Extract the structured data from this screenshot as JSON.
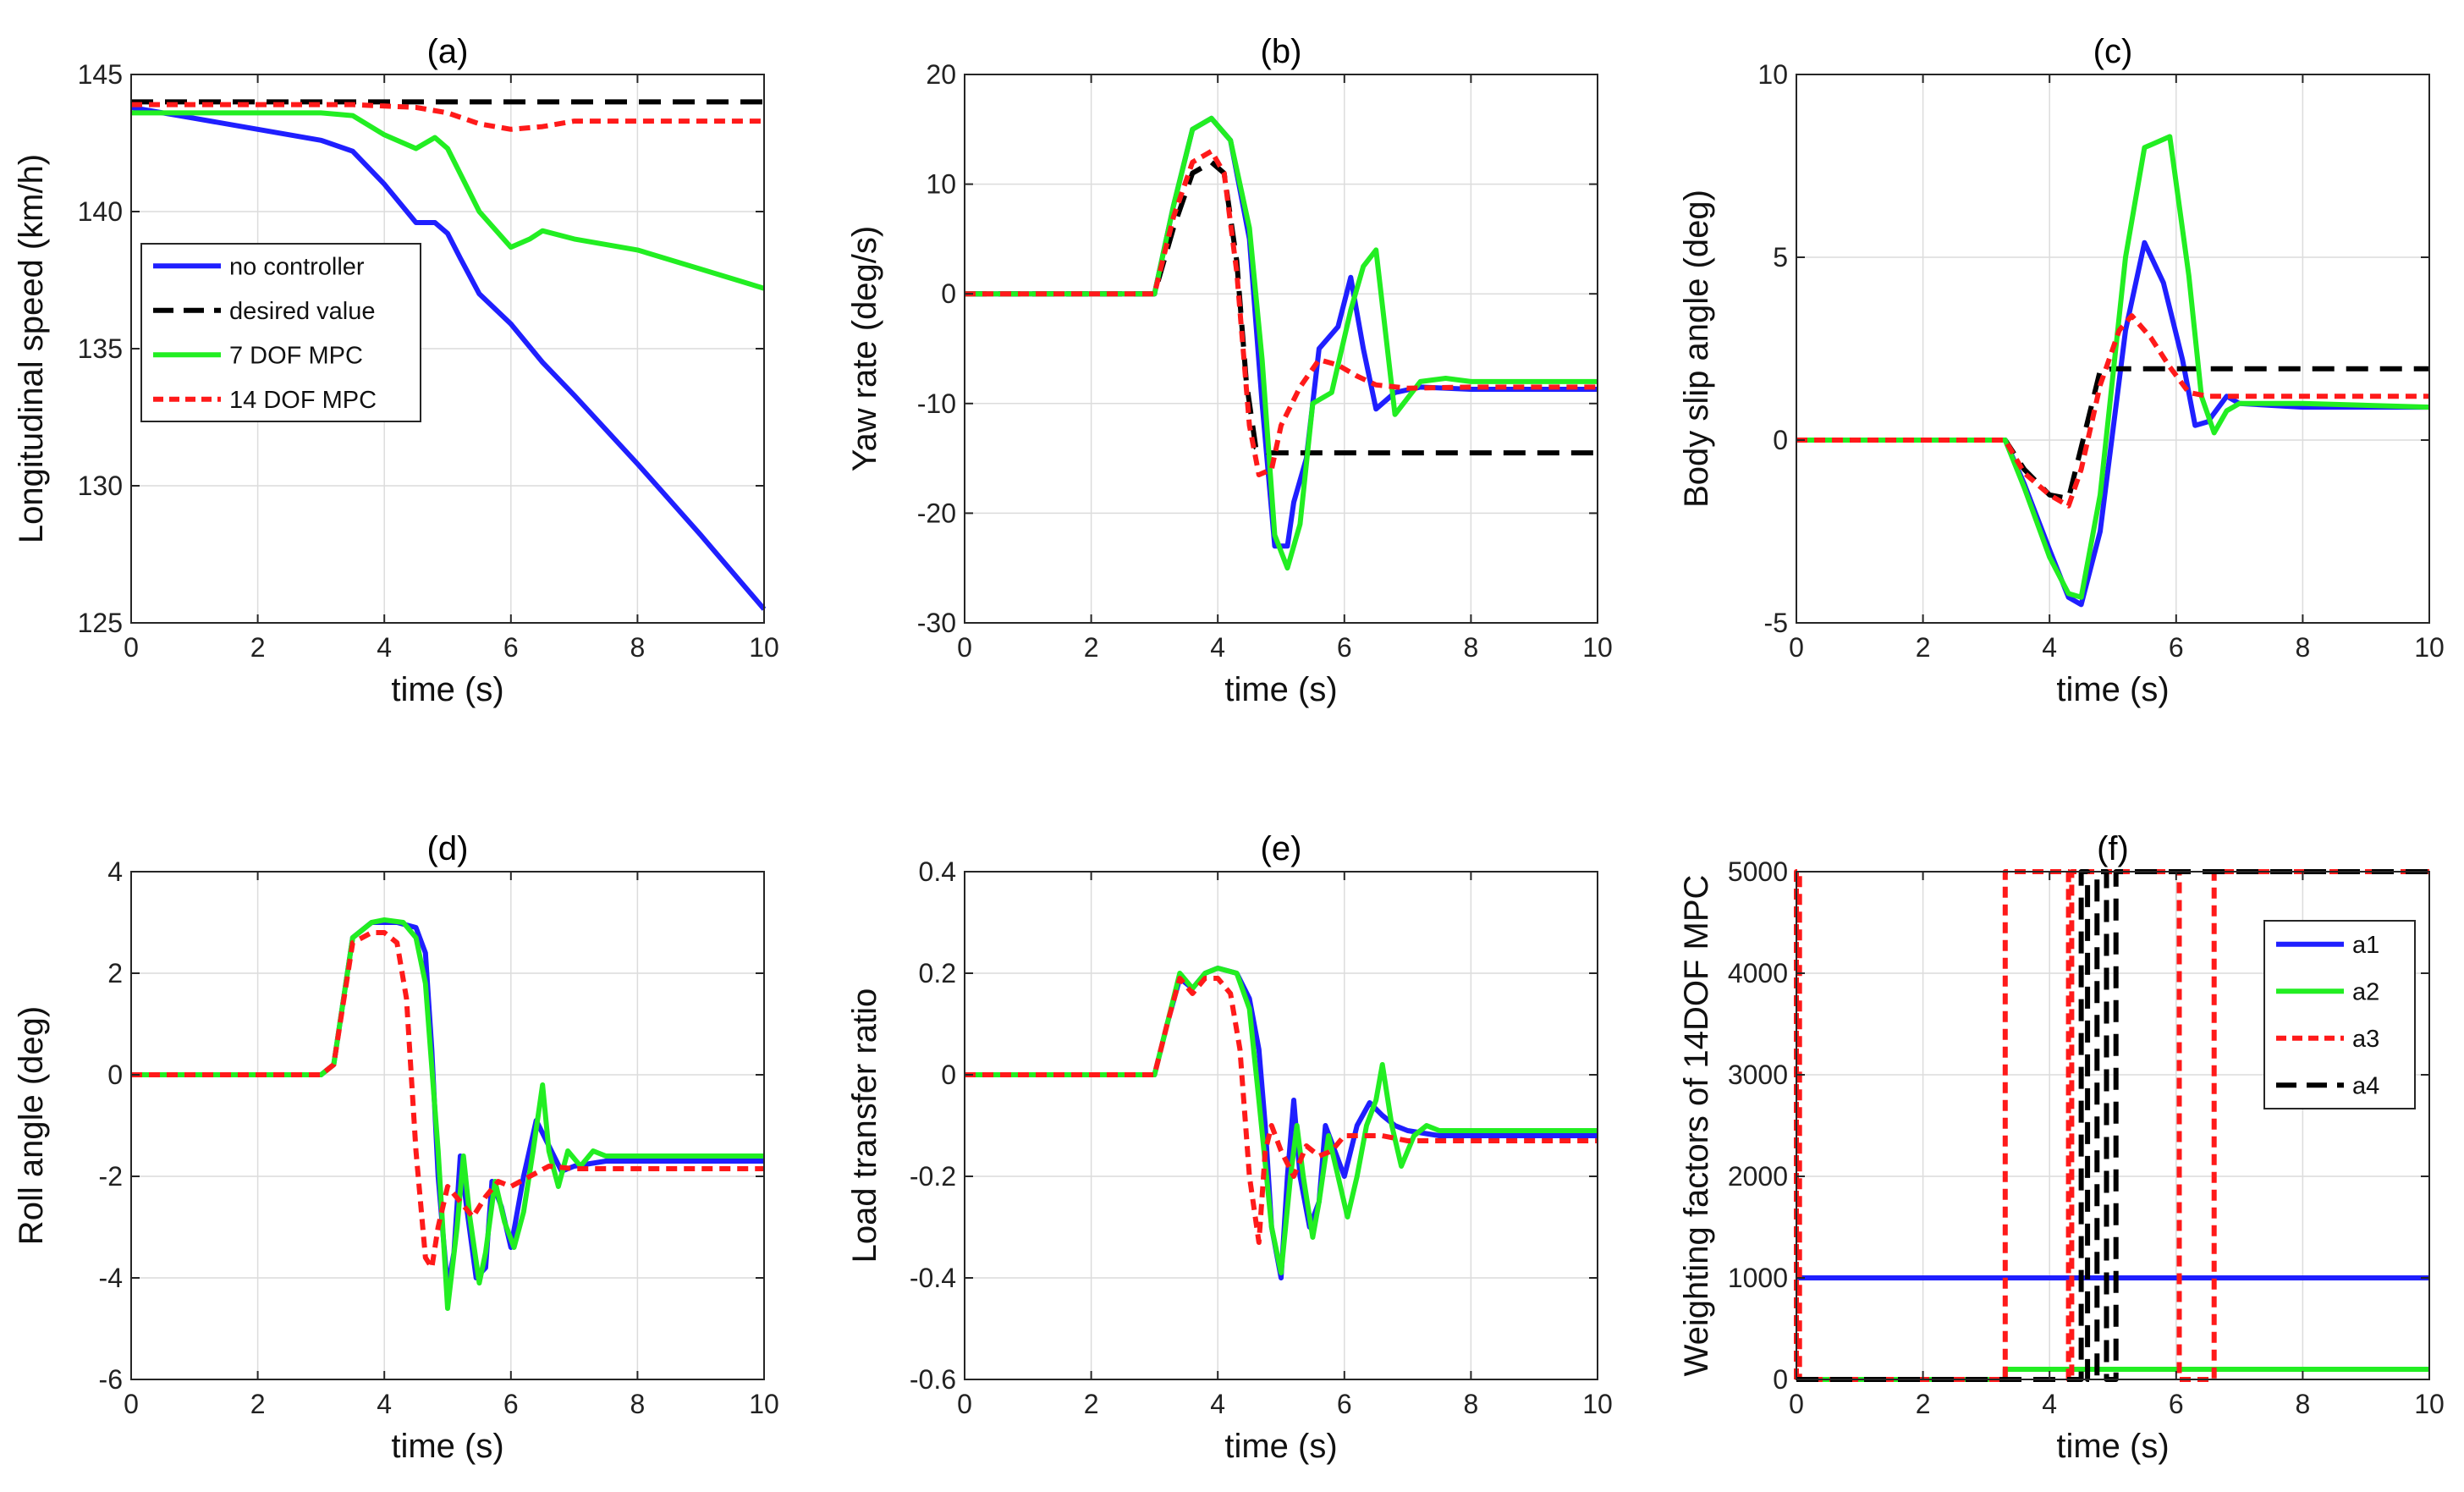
{
  "colors": {
    "blue": "#1f1fff",
    "black": "#000000",
    "green": "#22ee22",
    "red": "#ff1a1a",
    "grid": "#dcdcdc"
  },
  "chart_data": [
    {
      "id": "a",
      "type": "line",
      "title": "(a)",
      "xlabel": "time (s)",
      "ylabel": "Longitudinal speed (km/h)",
      "xlim": [
        0,
        10
      ],
      "ylim": [
        125,
        145
      ],
      "xticks": [
        0,
        2,
        4,
        6,
        8,
        10
      ],
      "yticks": [
        125,
        130,
        135,
        140,
        145
      ],
      "legend": {
        "position": "left-middle",
        "entries": [
          "no controller",
          "desired value",
          "7 DOF MPC",
          "14 DOF MPC"
        ]
      },
      "series": [
        {
          "name": "no controller",
          "color": "#1f1fff",
          "style": "solid",
          "x": [
            0,
            1,
            2,
            3,
            3.5,
            4,
            4.5,
            4.8,
            5,
            5.2,
            5.5,
            6,
            6.5,
            7,
            8,
            9,
            10
          ],
          "y": [
            143.8,
            143.4,
            143,
            142.6,
            142.2,
            141,
            139.6,
            139.6,
            139.2,
            138.3,
            137,
            135.9,
            134.5,
            133.3,
            130.8,
            128.2,
            125.5
          ]
        },
        {
          "name": "desired value",
          "color": "#000000",
          "style": "dash",
          "x": [
            0,
            10
          ],
          "y": [
            144,
            144
          ]
        },
        {
          "name": "7 DOF MPC",
          "color": "#22ee22",
          "style": "solid",
          "x": [
            0,
            1,
            2,
            3,
            3.5,
            4,
            4.5,
            4.8,
            5,
            5.5,
            6,
            6.3,
            6.5,
            7,
            8,
            9,
            10
          ],
          "y": [
            143.6,
            143.6,
            143.6,
            143.6,
            143.5,
            142.8,
            142.3,
            142.7,
            142.3,
            140,
            138.7,
            139,
            139.3,
            139.0,
            138.6,
            137.9,
            137.2
          ]
        },
        {
          "name": "14 DOF MPC",
          "color": "#ff1a1a",
          "style": "shortdash",
          "x": [
            0,
            1,
            2,
            3,
            3.5,
            4,
            4.5,
            5,
            5.5,
            6,
            6.5,
            7,
            8,
            10
          ],
          "y": [
            143.9,
            143.9,
            143.9,
            143.9,
            143.9,
            143.85,
            143.8,
            143.6,
            143.2,
            143,
            143.1,
            143.3,
            143.3,
            143.3
          ]
        }
      ]
    },
    {
      "id": "b",
      "type": "line",
      "title": "(b)",
      "xlabel": "time (s)",
      "ylabel": "Yaw rate (deg/s)",
      "xlim": [
        0,
        10
      ],
      "ylim": [
        -30,
        20
      ],
      "xticks": [
        0,
        2,
        4,
        6,
        8,
        10
      ],
      "yticks": [
        -30,
        -20,
        -10,
        0,
        10,
        20
      ],
      "series": [
        {
          "name": "no controller",
          "color": "#1f1fff",
          "style": "solid",
          "x": [
            0,
            3,
            3.3,
            3.6,
            3.9,
            4.2,
            4.5,
            4.7,
            4.9,
            5.1,
            5.2,
            5.4,
            5.6,
            5.9,
            6.1,
            6.3,
            6.5,
            6.8,
            7.2,
            8,
            10
          ],
          "y": [
            0,
            0,
            8,
            15,
            16,
            14,
            5,
            -10,
            -23,
            -23,
            -19,
            -15,
            -5,
            -3,
            1.5,
            -5,
            -10.5,
            -9,
            -8.5,
            -8.7,
            -8.7
          ]
        },
        {
          "name": "desired value",
          "color": "#000000",
          "style": "dash",
          "x": [
            0,
            3,
            3.3,
            3.6,
            3.9,
            4.1,
            4.3,
            4.45,
            4.6,
            4.8,
            10
          ],
          "y": [
            0,
            0,
            6,
            11,
            12,
            11,
            3,
            -8,
            -14,
            -14.5,
            -14.5
          ]
        },
        {
          "name": "7 DOF MPC",
          "color": "#22ee22",
          "style": "solid",
          "x": [
            0,
            3,
            3.3,
            3.6,
            3.9,
            4.2,
            4.5,
            4.7,
            4.9,
            5.1,
            5.3,
            5.5,
            5.8,
            6.1,
            6.3,
            6.5,
            6.8,
            7.2,
            7.6,
            8,
            10
          ],
          "y": [
            0,
            0,
            8,
            15,
            16,
            14,
            6,
            -6,
            -22,
            -25,
            -21,
            -10,
            -9,
            -1.5,
            2.5,
            4,
            -11,
            -8,
            -7.7,
            -8,
            -8
          ]
        },
        {
          "name": "14 DOF MPC",
          "color": "#ff1a1a",
          "style": "shortdash",
          "x": [
            0,
            3,
            3.3,
            3.6,
            3.9,
            4.1,
            4.3,
            4.5,
            4.65,
            4.85,
            5.0,
            5.3,
            5.6,
            5.9,
            6.2,
            6.5,
            7.0,
            8,
            10
          ],
          "y": [
            0,
            0,
            7,
            12,
            13,
            11,
            2,
            -12,
            -16.5,
            -16,
            -12,
            -8.5,
            -6,
            -6.5,
            -7.5,
            -8.3,
            -8.6,
            -8.5,
            -8.5
          ]
        }
      ]
    },
    {
      "id": "c",
      "type": "line",
      "title": "(c)",
      "xlabel": "time (s)",
      "ylabel": "Body slip angle (deg)",
      "xlim": [
        0,
        10
      ],
      "ylim": [
        -5,
        10
      ],
      "xticks": [
        0,
        2,
        4,
        6,
        8,
        10
      ],
      "yticks": [
        -5,
        0,
        5,
        10
      ],
      "series": [
        {
          "name": "no controller",
          "color": "#1f1fff",
          "style": "solid",
          "x": [
            0,
            3,
            3.3,
            3.6,
            4.0,
            4.3,
            4.5,
            4.8,
            5.2,
            5.5,
            5.8,
            6.1,
            6.3,
            6.5,
            6.8,
            7.0,
            8,
            10
          ],
          "y": [
            0,
            0,
            0,
            -1.2,
            -3,
            -4.3,
            -4.5,
            -2.5,
            3,
            5.4,
            4.3,
            2.2,
            0.4,
            0.5,
            1.2,
            1.0,
            0.9,
            0.9
          ]
        },
        {
          "name": "desired value",
          "color": "#000000",
          "style": "dash",
          "x": [
            0,
            3,
            3.3,
            3.6,
            4.0,
            4.3,
            4.6,
            4.8,
            5.0,
            10
          ],
          "y": [
            0,
            0,
            0,
            -0.8,
            -1.5,
            -1.6,
            0.5,
            1.9,
            1.95,
            1.95
          ]
        },
        {
          "name": "7 DOF MPC",
          "color": "#22ee22",
          "style": "solid",
          "x": [
            0,
            3,
            3.3,
            3.6,
            4.0,
            4.3,
            4.5,
            4.8,
            5.2,
            5.5,
            5.9,
            6.2,
            6.4,
            6.6,
            6.8,
            7.0,
            8,
            10
          ],
          "y": [
            0,
            0,
            0,
            -1.3,
            -3.2,
            -4.2,
            -4.3,
            -1.5,
            5,
            8,
            8.3,
            4.5,
            1.2,
            0.2,
            0.8,
            1.0,
            1.0,
            0.9
          ]
        },
        {
          "name": "14 DOF MPC",
          "color": "#ff1a1a",
          "style": "shortdash",
          "x": [
            0,
            3,
            3.3,
            3.6,
            4.0,
            4.3,
            4.5,
            4.8,
            5.1,
            5.3,
            5.6,
            5.9,
            6.2,
            6.5,
            7.0,
            10
          ],
          "y": [
            0,
            0,
            0,
            -0.9,
            -1.5,
            -1.8,
            -0.8,
            1.5,
            3.0,
            3.4,
            2.8,
            2.0,
            1.3,
            1.2,
            1.2,
            1.2
          ]
        }
      ]
    },
    {
      "id": "d",
      "type": "line",
      "title": "(d)",
      "xlabel": "time (s)",
      "ylabel": "Roll angle (deg)",
      "xlim": [
        0,
        10
      ],
      "ylim": [
        -6,
        4
      ],
      "xticks": [
        0,
        2,
        4,
        6,
        8,
        10
      ],
      "yticks": [
        -6,
        -4,
        -2,
        0,
        2,
        4
      ],
      "series": [
        {
          "name": "no controller",
          "color": "#1f1fff",
          "style": "solid",
          "x": [
            0,
            3.0,
            3.2,
            3.5,
            3.8,
            4.2,
            4.5,
            4.65,
            4.75,
            4.85,
            5.0,
            5.1,
            5.2,
            5.3,
            5.45,
            5.6,
            5.7,
            5.85,
            6.0,
            6.2,
            6.4,
            6.6,
            6.8,
            7.0,
            7.5,
            8,
            10
          ],
          "y": [
            0,
            0,
            0.2,
            2.7,
            3.0,
            3.0,
            2.9,
            2.4,
            0.5,
            -2,
            -4.2,
            -3.5,
            -1.6,
            -2.6,
            -4.0,
            -3.8,
            -2.1,
            -2.6,
            -3.4,
            -2.0,
            -0.9,
            -1.4,
            -1.9,
            -1.8,
            -1.7,
            -1.7,
            -1.7
          ]
        },
        {
          "name": "7 DOF MPC",
          "color": "#22ee22",
          "style": "solid",
          "x": [
            0,
            3.0,
            3.2,
            3.5,
            3.8,
            4.0,
            4.3,
            4.5,
            4.65,
            4.85,
            5.0,
            5.15,
            5.25,
            5.35,
            5.5,
            5.6,
            5.75,
            5.9,
            6.05,
            6.2,
            6.35,
            6.5,
            6.6,
            6.75,
            6.9,
            7.1,
            7.3,
            7.5,
            8,
            10
          ],
          "y": [
            0,
            0,
            0.2,
            2.7,
            3.0,
            3.05,
            3.0,
            2.7,
            1.8,
            -1.5,
            -4.6,
            -3.0,
            -1.6,
            -2.8,
            -4.1,
            -3.5,
            -2.1,
            -2.9,
            -3.4,
            -2.7,
            -1.5,
            -0.2,
            -1.5,
            -2.2,
            -1.5,
            -1.8,
            -1.5,
            -1.6,
            -1.6,
            -1.6
          ]
        },
        {
          "name": "14 DOF MPC",
          "color": "#ff1a1a",
          "style": "shortdash",
          "x": [
            0,
            3.0,
            3.2,
            3.5,
            3.8,
            4.0,
            4.2,
            4.35,
            4.5,
            4.65,
            4.75,
            4.85,
            5.0,
            5.2,
            5.4,
            5.6,
            5.8,
            6.0,
            6.3,
            6.6,
            7.0,
            8,
            10
          ],
          "y": [
            0,
            0,
            0.2,
            2.6,
            2.8,
            2.8,
            2.6,
            1.5,
            -1.5,
            -3.6,
            -3.8,
            -3.0,
            -2.2,
            -2.5,
            -2.8,
            -2.4,
            -2.1,
            -2.2,
            -2.0,
            -1.8,
            -1.85,
            -1.85,
            -1.85
          ]
        }
      ]
    },
    {
      "id": "e",
      "type": "line",
      "title": "(e)",
      "xlabel": "time (s)",
      "ylabel": "Load transfer ratio",
      "xlim": [
        0,
        10
      ],
      "ylim": [
        -0.6,
        0.4
      ],
      "xticks": [
        0,
        2,
        4,
        6,
        8,
        10
      ],
      "yticks": [
        -0.6,
        -0.4,
        -0.2,
        0,
        0.2,
        0.4
      ],
      "series": [
        {
          "name": "no controller",
          "color": "#1f1fff",
          "style": "solid",
          "x": [
            0,
            3.0,
            3.2,
            3.4,
            3.6,
            3.8,
            4.0,
            4.3,
            4.5,
            4.65,
            4.75,
            4.85,
            5.0,
            5.1,
            5.2,
            5.3,
            5.45,
            5.6,
            5.7,
            5.85,
            6.0,
            6.2,
            6.4,
            6.6,
            6.8,
            7.0,
            7.5,
            8,
            10
          ],
          "y": [
            0,
            0,
            0.1,
            0.19,
            0.17,
            0.2,
            0.21,
            0.2,
            0.15,
            0.05,
            -0.1,
            -0.3,
            -0.4,
            -0.2,
            -0.05,
            -0.2,
            -0.3,
            -0.25,
            -0.1,
            -0.15,
            -0.2,
            -0.1,
            -0.055,
            -0.08,
            -0.1,
            -0.11,
            -0.12,
            -0.12,
            -0.12
          ]
        },
        {
          "name": "7 DOF MPC",
          "color": "#22ee22",
          "style": "solid",
          "x": [
            0,
            3.0,
            3.2,
            3.4,
            3.6,
            3.8,
            4.0,
            4.3,
            4.5,
            4.65,
            4.85,
            5.0,
            5.15,
            5.25,
            5.35,
            5.5,
            5.6,
            5.75,
            5.9,
            6.05,
            6.2,
            6.35,
            6.5,
            6.6,
            6.75,
            6.9,
            7.1,
            7.3,
            7.5,
            8,
            10
          ],
          "y": [
            0,
            0,
            0.1,
            0.2,
            0.17,
            0.2,
            0.21,
            0.2,
            0.13,
            -0.05,
            -0.3,
            -0.39,
            -0.2,
            -0.1,
            -0.2,
            -0.32,
            -0.25,
            -0.12,
            -0.2,
            -0.28,
            -0.2,
            -0.1,
            -0.05,
            0.02,
            -0.1,
            -0.18,
            -0.12,
            -0.1,
            -0.11,
            -0.11,
            -0.11
          ]
        },
        {
          "name": "14 DOF MPC",
          "color": "#ff1a1a",
          "style": "shortdash",
          "x": [
            0,
            3.0,
            3.2,
            3.4,
            3.6,
            3.8,
            4.0,
            4.2,
            4.35,
            4.5,
            4.65,
            4.75,
            4.85,
            5.0,
            5.2,
            5.4,
            5.6,
            5.8,
            6.0,
            6.3,
            6.6,
            7.0,
            8,
            10
          ],
          "y": [
            0,
            0,
            0.1,
            0.19,
            0.16,
            0.19,
            0.19,
            0.16,
            0.05,
            -0.2,
            -0.33,
            -0.15,
            -0.1,
            -0.15,
            -0.2,
            -0.14,
            -0.16,
            -0.15,
            -0.12,
            -0.12,
            -0.12,
            -0.13,
            -0.13,
            -0.13
          ]
        }
      ]
    },
    {
      "id": "f",
      "type": "line",
      "title": "(f)",
      "xlabel": "time (s)",
      "ylabel": "Weighting factors of 14DOF MPC",
      "xlim": [
        0,
        10
      ],
      "ylim": [
        0,
        5000
      ],
      "xticks": [
        0,
        2,
        4,
        6,
        8,
        10
      ],
      "yticks": [
        0,
        1000,
        2000,
        3000,
        4000,
        5000
      ],
      "legend": {
        "position": "top-right",
        "entries": [
          "a1",
          "a2",
          "a3",
          "a4"
        ]
      },
      "series": [
        {
          "name": "a1",
          "color": "#1f1fff",
          "style": "solid",
          "x": [
            0,
            10
          ],
          "y": [
            1000,
            1000
          ]
        },
        {
          "name": "a2",
          "color": "#22ee22",
          "style": "solid",
          "x": [
            0,
            3.3,
            3.3,
            6.6,
            6.6,
            10
          ],
          "y": [
            0,
            0,
            100,
            100,
            100,
            100
          ]
        },
        {
          "name": "a3",
          "color": "#ff1a1a",
          "style": "shortdash",
          "x": [
            0,
            0,
            0.05,
            0.05,
            3.3,
            3.3,
            4.3,
            4.3,
            4.35,
            4.35,
            6.05,
            6.05,
            6.6,
            6.6,
            10
          ],
          "y": [
            0,
            5000,
            5000,
            0,
            0,
            5000,
            5000,
            0,
            0,
            5000,
            5000,
            0,
            0,
            5000,
            5000
          ]
        },
        {
          "name": "a4",
          "color": "#000000",
          "style": "dash",
          "x": [
            0,
            4.5,
            4.5,
            4.6,
            4.6,
            4.75,
            4.75,
            4.9,
            4.9,
            5.05,
            5.05,
            10
          ],
          "y": [
            0,
            0,
            5000,
            5000,
            0,
            0,
            5000,
            5000,
            0,
            0,
            5000,
            5000
          ]
        }
      ]
    }
  ]
}
